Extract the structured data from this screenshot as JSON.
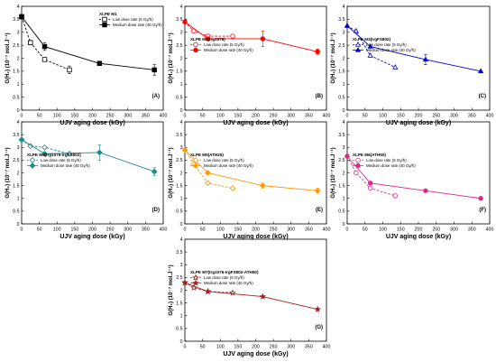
{
  "x_axis_title": "UJV aging dose (kGy)",
  "y_axis_title": "G(H₂) (10⁻⁷ mol.J⁻¹)",
  "chart_data": [
    {
      "type": "line",
      "panel_label": "(A)",
      "legend_title": "XLPE M1",
      "xlim": [
        0,
        400
      ],
      "ylim": [
        0,
        4
      ],
      "xticks": [
        0,
        50,
        100,
        150,
        200,
        250,
        300,
        350,
        400
      ],
      "yticks": [
        0,
        0.5,
        1,
        1.5,
        2,
        2.5,
        3,
        3.5,
        4
      ],
      "color": "#000000",
      "series": [
        {
          "name": "Low dose rate (5 Gy/h)",
          "style": "dashed",
          "marker": "square-open",
          "x": [
            0,
            25,
            65,
            135
          ],
          "y": [
            3.6,
            2.6,
            1.95,
            1.55
          ],
          "err": [
            0,
            0,
            0,
            0.15
          ]
        },
        {
          "name": "Medium dose rate (40 Gy/h)",
          "style": "solid",
          "marker": "square-filled",
          "x": [
            0,
            65,
            220,
            375
          ],
          "y": [
            3.6,
            2.45,
            1.8,
            1.55
          ],
          "err": [
            0,
            0.15,
            0,
            0.2
          ]
        }
      ]
    },
    {
      "type": "line",
      "panel_label": "(B)",
      "legend_title": "XLPE M2(Irg1076)",
      "xlim": [
        0,
        400
      ],
      "ylim": [
        0,
        4
      ],
      "xticks": [
        0,
        50,
        100,
        150,
        200,
        250,
        300,
        350,
        400
      ],
      "yticks": [
        0,
        0.5,
        1,
        1.5,
        2,
        2.5,
        3,
        3.5,
        4
      ],
      "color": "#ff0000",
      "series": [
        {
          "name": "Low dose rate (5 Gy/h)",
          "style": "dashed",
          "marker": "circle-open",
          "x": [
            0,
            25,
            65,
            135
          ],
          "y": [
            3.4,
            3.05,
            2.85,
            2.85
          ],
          "err": [
            0,
            0,
            0,
            0
          ]
        },
        {
          "name": "Medium dose rate (40 Gy/h)",
          "style": "solid",
          "marker": "circle-filled",
          "x": [
            0,
            65,
            220,
            375
          ],
          "y": [
            3.4,
            2.75,
            2.75,
            2.25
          ],
          "err": [
            0,
            0,
            0.3,
            0.1
          ]
        }
      ]
    },
    {
      "type": "line",
      "panel_label": "(C)",
      "legend_title": "XLPE M3(IrgFS802)",
      "xlim": [
        0,
        400
      ],
      "ylim": [
        0,
        4
      ],
      "xticks": [
        0,
        50,
        100,
        150,
        200,
        250,
        300,
        350,
        400
      ],
      "yticks": [
        0,
        0.5,
        1,
        1.5,
        2,
        2.5,
        3,
        3.5,
        4
      ],
      "color": "#0000cc",
      "series": [
        {
          "name": "Low dose rate (5 Gy/h)",
          "style": "dashed",
          "marker": "triangle-open",
          "x": [
            0,
            25,
            65,
            135
          ],
          "y": [
            3.25,
            3.05,
            2.1,
            1.65
          ],
          "err": [
            0,
            0,
            0,
            0
          ]
        },
        {
          "name": "Medium dose rate (40 Gy/h)",
          "style": "solid",
          "marker": "triangle-filled",
          "x": [
            0,
            65,
            220,
            375
          ],
          "y": [
            3.25,
            2.45,
            1.95,
            1.5
          ],
          "err": [
            0,
            0,
            0.2,
            0
          ]
        }
      ]
    },
    {
      "type": "line",
      "panel_label": "(D)",
      "legend_title": "XLPE M4(Irg1076-IrgFS802)",
      "xlim": [
        0,
        400
      ],
      "ylim": [
        0,
        4
      ],
      "xticks": [
        0,
        50,
        100,
        150,
        200,
        250,
        300,
        350,
        400
      ],
      "yticks": [
        0,
        0.5,
        1,
        1.5,
        2,
        2.5,
        3,
        3.5,
        4
      ],
      "color": "#1a8a8a",
      "series": [
        {
          "name": "Low dose rate (5 Gy/h)",
          "style": "dashed",
          "marker": "diamond-open",
          "x": [
            0,
            25,
            65,
            135
          ],
          "y": [
            3.3,
            3.05,
            3.0,
            2.75
          ],
          "err": [
            0,
            0,
            0,
            0
          ]
        },
        {
          "name": "Medium dose rate (40 Gy/h)",
          "style": "solid",
          "marker": "diamond-filled",
          "x": [
            0,
            65,
            220,
            375
          ],
          "y": [
            3.3,
            2.75,
            2.8,
            2.05
          ],
          "err": [
            0,
            0,
            0.3,
            0.15
          ]
        }
      ]
    },
    {
      "type": "line",
      "panel_label": "(E)",
      "legend_title": "XLPE M5(ATH25)",
      "xlim": [
        0,
        400
      ],
      "ylim": [
        0,
        4
      ],
      "xticks": [
        0,
        50,
        100,
        150,
        200,
        250,
        300,
        350,
        400
      ],
      "yticks": [
        0,
        0.5,
        1,
        1.5,
        2,
        2.5,
        3,
        3.5,
        4
      ],
      "color": "#ff9900",
      "series": [
        {
          "name": "Low dose rate (5 Gy/h)",
          "style": "dashed",
          "marker": "diamond-open",
          "x": [
            0,
            25,
            65,
            135
          ],
          "y": [
            2.9,
            2.35,
            1.6,
            1.4
          ],
          "err": [
            0,
            0,
            0,
            0
          ]
        },
        {
          "name": "Medium dose rate (40 Gy/h)",
          "style": "solid",
          "marker": "diamond-filled",
          "x": [
            0,
            65,
            220,
            375
          ],
          "y": [
            2.9,
            2.0,
            1.5,
            1.3
          ],
          "err": [
            0,
            0,
            0.1,
            0.1
          ]
        }
      ]
    },
    {
      "type": "line",
      "panel_label": "(F)",
      "legend_title": "XLPE M6(ATH50)",
      "xlim": [
        0,
        400
      ],
      "ylim": [
        0,
        4
      ],
      "xticks": [
        0,
        50,
        100,
        150,
        200,
        250,
        300,
        350,
        400
      ],
      "yticks": [
        0,
        0.5,
        1,
        1.5,
        2,
        2.5,
        3,
        3.5,
        4
      ],
      "color": "#e0288c",
      "series": [
        {
          "name": "Low dose rate (5 Gy/h)",
          "style": "dashed",
          "marker": "circle-open",
          "x": [
            0,
            25,
            65,
            135
          ],
          "y": [
            2.65,
            2.0,
            1.4,
            1.1
          ],
          "err": [
            0,
            0,
            0,
            0
          ]
        },
        {
          "name": "Medium dose rate (40 Gy/h)",
          "style": "solid",
          "marker": "circle-filled",
          "x": [
            0,
            65,
            220,
            375
          ],
          "y": [
            2.65,
            1.6,
            1.3,
            1.0
          ],
          "err": [
            0,
            0,
            0,
            0
          ]
        }
      ]
    },
    {
      "type": "line",
      "panel_label": "(G)",
      "legend_title": "XLPE M7(Irg1076-IrgFS802-ATH50)",
      "xlim": [
        0,
        400
      ],
      "ylim": [
        0,
        4
      ],
      "xticks": [
        0,
        50,
        100,
        150,
        200,
        250,
        300,
        350,
        400
      ],
      "yticks": [
        0,
        0.5,
        1,
        1.5,
        2,
        2.5,
        3,
        3.5,
        4
      ],
      "color": "#a02020",
      "series": [
        {
          "name": "Low dose rate (5 Gy/h)",
          "style": "dashed",
          "marker": "star-open",
          "x": [
            0,
            25,
            65,
            135
          ],
          "y": [
            2.3,
            2.1,
            1.95,
            1.9
          ],
          "err": [
            0,
            0,
            0,
            0
          ]
        },
        {
          "name": "Medium dose rate (40 Gy/h)",
          "style": "solid",
          "marker": "star-filled",
          "x": [
            0,
            65,
            220,
            375
          ],
          "y": [
            2.3,
            1.95,
            1.75,
            1.25
          ],
          "err": [
            0,
            0,
            0,
            0
          ]
        }
      ]
    }
  ]
}
